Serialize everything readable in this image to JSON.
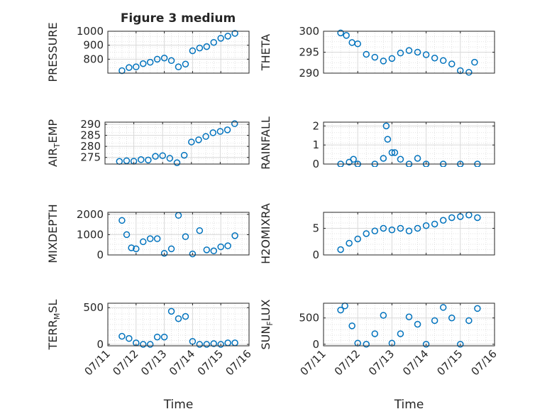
{
  "figure": {
    "title": "Figure 3 medium"
  },
  "chart_data": [
    {
      "type": "scatter",
      "ylabel": "PRESSURE",
      "ylim": [
        700,
        1000
      ],
      "yticks": [
        800,
        900,
        1000
      ],
      "xlim": [
        "07/11",
        "07/16"
      ],
      "xticks": [
        "07/11",
        "07/12",
        "07/13",
        "07/14",
        "07/15",
        "07/16"
      ],
      "show_x_ticklabels": false,
      "grid": true,
      "marker": "circle",
      "points": [
        [
          "07/11 12:00",
          718
        ],
        [
          "07/11 18:00",
          740
        ],
        [
          "07/12 00:00",
          745
        ],
        [
          "07/12 06:00",
          768
        ],
        [
          "07/12 12:00",
          778
        ],
        [
          "07/12 18:00",
          800
        ],
        [
          "07/13 00:00",
          808
        ],
        [
          "07/13 06:00",
          790
        ],
        [
          "07/13 12:00",
          745
        ],
        [
          "07/13 18:00",
          765
        ],
        [
          "07/14 00:00",
          860
        ],
        [
          "07/14 06:00",
          880
        ],
        [
          "07/14 12:00",
          890
        ],
        [
          "07/14 18:00",
          920
        ],
        [
          "07/15 00:00",
          950
        ],
        [
          "07/15 06:00",
          965
        ],
        [
          "07/15 12:00",
          985
        ]
      ]
    },
    {
      "type": "scatter",
      "ylabel": "THETA",
      "ylim": [
        290,
        300
      ],
      "yticks": [
        290,
        295,
        300
      ],
      "xlim": [
        "07/11",
        "07/16"
      ],
      "xticks": [
        "07/11",
        "07/12",
        "07/13",
        "07/14",
        "07/15",
        "07/16"
      ],
      "show_x_ticklabels": false,
      "grid": true,
      "marker": "circle",
      "points": [
        [
          "07/11 12:00",
          299.6
        ],
        [
          "07/11 16:00",
          299.0
        ],
        [
          "07/11 20:00",
          297.3
        ],
        [
          "07/12 00:00",
          297.0
        ],
        [
          "07/12 06:00",
          294.5
        ],
        [
          "07/12 12:00",
          293.8
        ],
        [
          "07/12 18:00",
          292.9
        ],
        [
          "07/13 00:00",
          293.5
        ],
        [
          "07/13 06:00",
          294.8
        ],
        [
          "07/13 12:00",
          295.4
        ],
        [
          "07/13 18:00",
          295.0
        ],
        [
          "07/14 00:00",
          294.4
        ],
        [
          "07/14 06:00",
          293.6
        ],
        [
          "07/14 12:00",
          293.0
        ],
        [
          "07/14 18:00",
          292.2
        ],
        [
          "07/15 00:00",
          290.6
        ],
        [
          "07/15 06:00",
          290.2
        ],
        [
          "07/15 10:00",
          292.6
        ]
      ]
    },
    {
      "type": "scatter",
      "ylabel": "AIR_TEMP",
      "ylabel_subscript": "T",
      "ylim": [
        272,
        291
      ],
      "yticks": [
        275,
        280,
        285,
        290
      ],
      "xlim": [
        "07/11",
        "07/16"
      ],
      "xticks": [
        "07/11",
        "07/12",
        "07/13",
        "07/14",
        "07/15",
        "07/16"
      ],
      "show_x_ticklabels": false,
      "grid": true,
      "marker": "circle",
      "points": [
        [
          "07/11 12:00",
          273.2
        ],
        [
          "07/11 18:00",
          273.5
        ],
        [
          "07/12 00:00",
          273.3
        ],
        [
          "07/12 06:00",
          274.0
        ],
        [
          "07/12 12:00",
          273.8
        ],
        [
          "07/12 18:00",
          275.5
        ],
        [
          "07/13 00:00",
          275.8
        ],
        [
          "07/13 06:00",
          274.6
        ],
        [
          "07/13 12:00",
          272.6
        ],
        [
          "07/13 18:00",
          276.0
        ],
        [
          "07/14 00:00",
          282.0
        ],
        [
          "07/14 06:00",
          283.0
        ],
        [
          "07/14 12:00",
          284.5
        ],
        [
          "07/14 18:00",
          286.2
        ],
        [
          "07/15 00:00",
          286.8
        ],
        [
          "07/15 06:00",
          287.5
        ],
        [
          "07/15 12:00",
          290.3
        ]
      ]
    },
    {
      "type": "scatter",
      "ylabel": "RAINFALL",
      "ylim": [
        0,
        2.2
      ],
      "yticks": [
        0,
        1,
        2
      ],
      "xlim": [
        "07/11",
        "07/16"
      ],
      "xticks": [
        "07/11",
        "07/12",
        "07/13",
        "07/14",
        "07/15",
        "07/16"
      ],
      "show_x_ticklabels": false,
      "grid": true,
      "marker": "circle",
      "points": [
        [
          "07/11 12:00",
          0
        ],
        [
          "07/11 18:00",
          0.1
        ],
        [
          "07/11 21:00",
          0.25
        ],
        [
          "07/12 00:00",
          0
        ],
        [
          "07/12 12:00",
          0
        ],
        [
          "07/12 18:00",
          0.3
        ],
        [
          "07/12 20:00",
          2.0
        ],
        [
          "07/12 21:00",
          1.3
        ],
        [
          "07/13 00:00",
          0.6
        ],
        [
          "07/13 02:00",
          0.6
        ],
        [
          "07/13 06:00",
          0.25
        ],
        [
          "07/13 12:00",
          0
        ],
        [
          "07/13 18:00",
          0.3
        ],
        [
          "07/14 00:00",
          0
        ],
        [
          "07/14 12:00",
          0
        ],
        [
          "07/15 00:00",
          0
        ],
        [
          "07/15 12:00",
          0
        ]
      ]
    },
    {
      "type": "scatter",
      "ylabel": "MIXDEPTH",
      "ylim": [
        0,
        2100
      ],
      "yticks": [
        0,
        1000,
        2000
      ],
      "xlim": [
        "07/11",
        "07/16"
      ],
      "xticks": [
        "07/11",
        "07/12",
        "07/13",
        "07/14",
        "07/15",
        "07/16"
      ],
      "show_x_ticklabels": false,
      "grid": true,
      "marker": "circle",
      "points": [
        [
          "07/11 12:00",
          1700
        ],
        [
          "07/11 16:00",
          1000
        ],
        [
          "07/11 20:00",
          350
        ],
        [
          "07/12 00:00",
          300
        ],
        [
          "07/12 06:00",
          650
        ],
        [
          "07/12 12:00",
          800
        ],
        [
          "07/12 18:00",
          800
        ],
        [
          "07/13 00:00",
          80
        ],
        [
          "07/13 06:00",
          300
        ],
        [
          "07/13 12:00",
          1950
        ],
        [
          "07/13 18:00",
          900
        ],
        [
          "07/14 00:00",
          50
        ],
        [
          "07/14 06:00",
          1200
        ],
        [
          "07/14 12:00",
          250
        ],
        [
          "07/14 18:00",
          200
        ],
        [
          "07/15 00:00",
          400
        ],
        [
          "07/15 06:00",
          450
        ],
        [
          "07/15 12:00",
          950
        ]
      ]
    },
    {
      "type": "scatter",
      "ylabel": "H2OMIXRA",
      "ylim": [
        0,
        8
      ],
      "yticks": [
        0,
        5
      ],
      "xlim": [
        "07/11",
        "07/16"
      ],
      "xticks": [
        "07/11",
        "07/12",
        "07/13",
        "07/14",
        "07/15",
        "07/16"
      ],
      "show_x_ticklabels": false,
      "grid": true,
      "marker": "circle",
      "points": [
        [
          "07/11 12:00",
          1.0
        ],
        [
          "07/11 18:00",
          2.2
        ],
        [
          "07/12 00:00",
          3.0
        ],
        [
          "07/12 06:00",
          4.0
        ],
        [
          "07/12 12:00",
          4.5
        ],
        [
          "07/12 18:00",
          5.0
        ],
        [
          "07/13 00:00",
          4.7
        ],
        [
          "07/13 06:00",
          5.0
        ],
        [
          "07/13 12:00",
          4.5
        ],
        [
          "07/13 18:00",
          5.0
        ],
        [
          "07/14 00:00",
          5.5
        ],
        [
          "07/14 06:00",
          5.8
        ],
        [
          "07/14 12:00",
          6.5
        ],
        [
          "07/14 18:00",
          7.0
        ],
        [
          "07/15 00:00",
          7.2
        ],
        [
          "07/15 06:00",
          7.5
        ],
        [
          "07/15 12:00",
          7.0
        ]
      ]
    },
    {
      "type": "scatter",
      "ylabel": "TERR_MSL",
      "ylabel_subscript": "M",
      "ylim": [
        -20,
        560
      ],
      "yticks": [
        0,
        500
      ],
      "xlim": [
        "07/11",
        "07/16"
      ],
      "xticks": [
        "07/11",
        "07/12",
        "07/13",
        "07/14",
        "07/15",
        "07/16"
      ],
      "show_x_ticklabels": true,
      "xlabel": "Time",
      "grid": true,
      "marker": "circle",
      "points": [
        [
          "07/11 12:00",
          110
        ],
        [
          "07/11 18:00",
          80
        ],
        [
          "07/12 00:00",
          20
        ],
        [
          "07/12 06:00",
          0
        ],
        [
          "07/12 12:00",
          0
        ],
        [
          "07/12 18:00",
          100
        ],
        [
          "07/13 00:00",
          100
        ],
        [
          "07/13 06:00",
          450
        ],
        [
          "07/13 12:00",
          350
        ],
        [
          "07/13 18:00",
          380
        ],
        [
          "07/14 00:00",
          40
        ],
        [
          "07/14 06:00",
          0
        ],
        [
          "07/14 12:00",
          0
        ],
        [
          "07/14 18:00",
          10
        ],
        [
          "07/15 00:00",
          0
        ],
        [
          "07/15 06:00",
          20
        ],
        [
          "07/15 12:00",
          20
        ]
      ]
    },
    {
      "type": "scatter",
      "ylabel": "SUN_FLUX",
      "ylabel_subscript": "F",
      "ylim": [
        -30,
        780
      ],
      "yticks": [
        0,
        500
      ],
      "xlim": [
        "07/11",
        "07/16"
      ],
      "xticks": [
        "07/11",
        "07/12",
        "07/13",
        "07/14",
        "07/15",
        "07/16"
      ],
      "show_x_ticklabels": true,
      "xlabel": "Time",
      "grid": true,
      "marker": "circle",
      "points": [
        [
          "07/11 12:00",
          650
        ],
        [
          "07/11 15:00",
          730
        ],
        [
          "07/11 20:00",
          350
        ],
        [
          "07/12 00:00",
          20
        ],
        [
          "07/12 06:00",
          0
        ],
        [
          "07/12 12:00",
          200
        ],
        [
          "07/12 18:00",
          550
        ],
        [
          "07/13 00:00",
          20
        ],
        [
          "07/13 06:00",
          200
        ],
        [
          "07/13 12:00",
          520
        ],
        [
          "07/13 18:00",
          380
        ],
        [
          "07/14 00:00",
          0
        ],
        [
          "07/14 06:00",
          450
        ],
        [
          "07/14 12:00",
          700
        ],
        [
          "07/14 18:00",
          500
        ],
        [
          "07/15 00:00",
          0
        ],
        [
          "07/15 06:00",
          450
        ],
        [
          "07/15 12:00",
          680
        ]
      ]
    }
  ],
  "colors": {
    "marker": "#0072BD",
    "axis": "#262626",
    "grid": "#d9d9d9"
  }
}
